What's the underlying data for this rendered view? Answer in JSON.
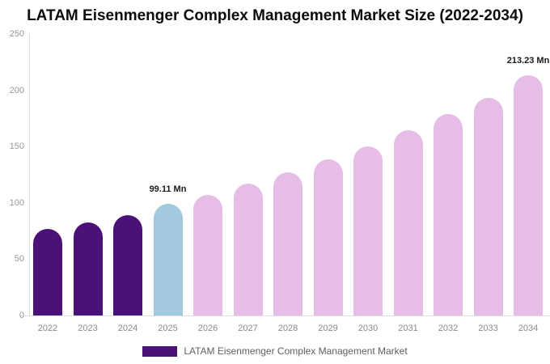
{
  "chart_data": {
    "type": "bar",
    "title": "LATAM Eisenmenger Complex Management Market Size (2022-2034)",
    "unit": "Mn",
    "categories": [
      "2022",
      "2023",
      "2024",
      "2025",
      "2026",
      "2027",
      "2028",
      "2029",
      "2030",
      "2031",
      "2032",
      "2033",
      "2034"
    ],
    "values": [
      76.6,
      82.4,
      88.9,
      99.11,
      107.2,
      116.8,
      127.0,
      138.5,
      150.5,
      164.2,
      178.8,
      193.5,
      213.23
    ],
    "bar_colors": [
      "#4A1277",
      "#4A1277",
      "#4A1277",
      "#A2C9DE",
      "#E5BDE7",
      "#E5BDE7",
      "#E5BDE7",
      "#E5BDE7",
      "#E5BDE7",
      "#E5BDE7",
      "#E5BDE7",
      "#E5BDE7",
      "#E5BDE7"
    ],
    "color_meaning": {
      "historical_2022_2024": "#4A1277",
      "base_year_2025": "#A2C9DE",
      "forecast_2026_2034": "#E5BDE7"
    },
    "data_labels": {
      "2025": "99.11 Mn",
      "2034": "213.23 Mn"
    },
    "ylabel": "",
    "xlabel": "",
    "ylim": [
      0,
      250
    ],
    "y_ticks": [
      "0",
      "50",
      "100",
      "150",
      "200",
      "250"
    ],
    "grid": false,
    "legend": {
      "label": "LATAM Eisenmenger Complex Management Market",
      "swatch_color": "#4A1277",
      "position": "bottom"
    }
  }
}
